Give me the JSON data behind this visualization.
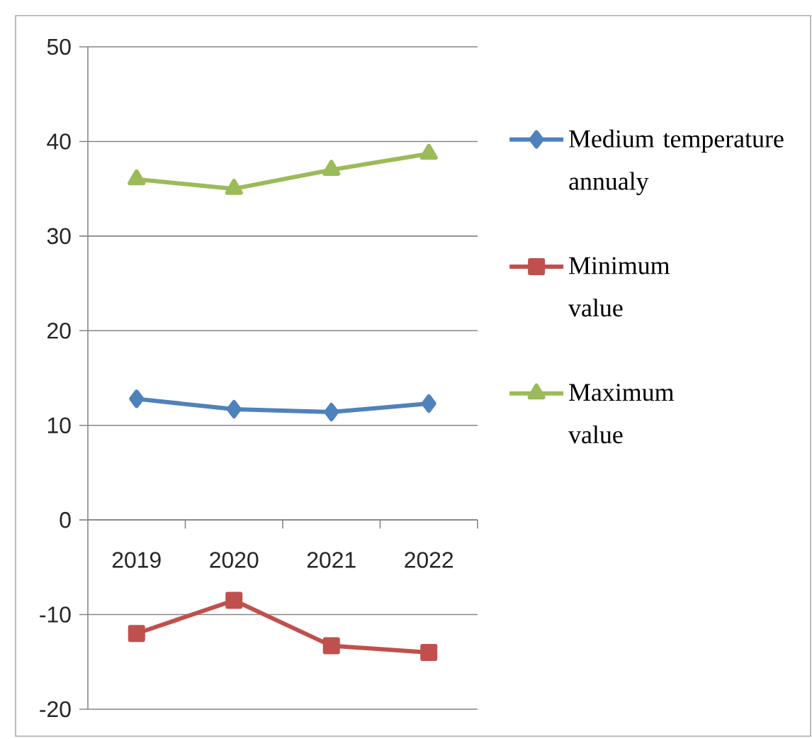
{
  "chart_data": {
    "type": "line",
    "categories": [
      "2019",
      "2020",
      "2021",
      "2022"
    ],
    "series": [
      {
        "name": "Medium temperature annualy",
        "color": "#4f81bd",
        "marker": "diamond",
        "values": [
          12.8,
          11.7,
          11.4,
          12.3
        ]
      },
      {
        "name": "Minimum value",
        "color": "#c0504d",
        "marker": "square",
        "values": [
          -12,
          -8.5,
          -13.3,
          -14
        ]
      },
      {
        "name": "Maximum value",
        "color": "#9bbb59",
        "marker": "triangle",
        "values": [
          36,
          35,
          37,
          38.7
        ]
      }
    ],
    "ylim": [
      -20,
      50
    ],
    "yticks": [
      -20,
      -10,
      0,
      10,
      20,
      30,
      40,
      50
    ],
    "grid": "y",
    "legend": "right",
    "line_style": "solid"
  }
}
